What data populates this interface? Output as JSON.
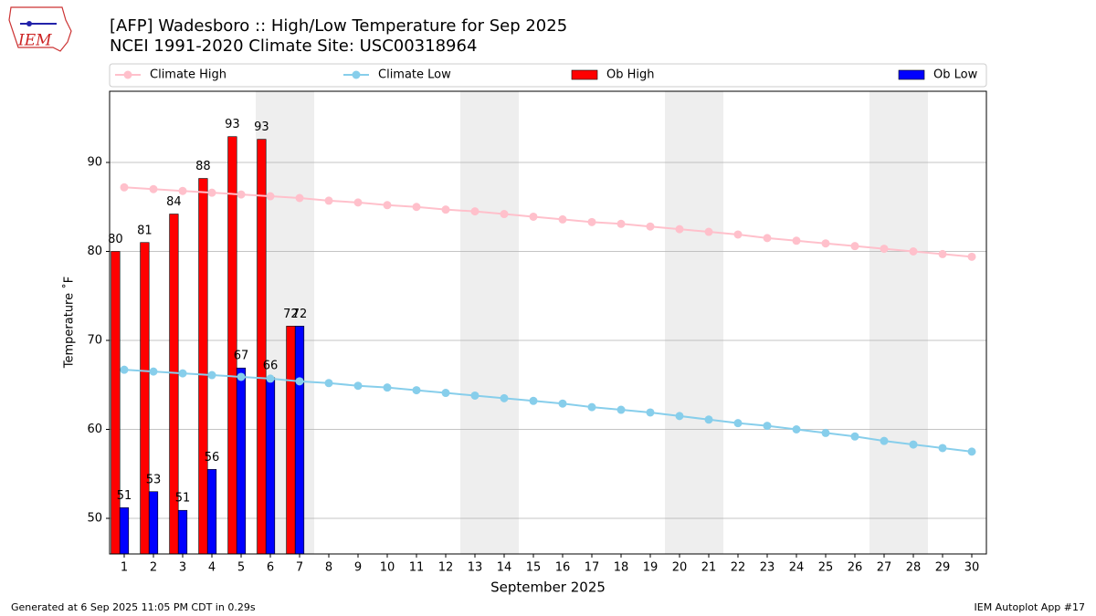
{
  "logo": "IEM",
  "footer": {
    "left": "Generated at 6 Sep 2025 11:05 PM CDT in 0.29s",
    "right": "IEM Autoplot App #17"
  },
  "chart_data": {
    "type": "bar",
    "title": "[AFP] Wadesboro :: High/Low Temperature for Sep 2025",
    "subtitle": "NCEI 1991-2020 Climate Site: USC00318964",
    "x_label": "September 2025",
    "y_label": "Temperature ˚F",
    "x": [
      1,
      2,
      3,
      4,
      5,
      6,
      7,
      8,
      9,
      10,
      11,
      12,
      13,
      14,
      15,
      16,
      17,
      18,
      19,
      20,
      21,
      22,
      23,
      24,
      25,
      26,
      27,
      28,
      29,
      30
    ],
    "xlim": [
      0.5,
      30.5
    ],
    "xticks": [
      1,
      2,
      3,
      4,
      5,
      6,
      7,
      8,
      9,
      10,
      11,
      12,
      13,
      14,
      15,
      16,
      17,
      18,
      19,
      20,
      21,
      22,
      23,
      24,
      25,
      26,
      27,
      28,
      29,
      30
    ],
    "ylim": [
      46,
      98
    ],
    "yticks": [
      50,
      60,
      70,
      80,
      90
    ],
    "grid": "y",
    "shaded_spans": [
      [
        5.5,
        7.5
      ],
      [
        12.5,
        14.5
      ],
      [
        19.5,
        21.5
      ],
      [
        26.5,
        28.5
      ]
    ],
    "shade_color": "#eeeeee",
    "series": [
      {
        "name": "Climate High",
        "type": "line",
        "color": "#ffc0cb",
        "values": [
          87.2,
          87.0,
          86.8,
          86.6,
          86.4,
          86.2,
          86.0,
          85.7,
          85.5,
          85.2,
          85.0,
          84.7,
          84.5,
          84.2,
          83.9,
          83.6,
          83.3,
          83.1,
          82.8,
          82.5,
          82.2,
          81.9,
          81.5,
          81.2,
          80.9,
          80.6,
          80.3,
          80.0,
          79.7,
          79.4
        ]
      },
      {
        "name": "Climate Low",
        "type": "line",
        "color": "#87ceeb",
        "values": [
          66.7,
          66.5,
          66.3,
          66.1,
          65.9,
          65.7,
          65.4,
          65.2,
          64.9,
          64.7,
          64.4,
          64.1,
          63.8,
          63.5,
          63.2,
          62.9,
          62.5,
          62.2,
          61.9,
          61.5,
          61.1,
          60.7,
          60.4,
          60.0,
          59.6,
          59.2,
          58.7,
          58.3,
          57.9,
          57.5
        ]
      },
      {
        "name": "Ob High",
        "type": "bar",
        "color": "#ff0000",
        "offset": -0.3,
        "width": 0.3,
        "values": [
          80,
          81,
          84.2,
          88.2,
          92.9,
          92.6,
          71.6,
          null,
          null,
          null,
          null,
          null,
          null,
          null,
          null,
          null,
          null,
          null,
          null,
          null,
          null,
          null,
          null,
          null,
          null,
          null,
          null,
          null,
          null,
          null
        ],
        "value_labels": [
          "80",
          "81",
          "84",
          "88",
          "93",
          "93",
          "72",
          null,
          null,
          null,
          null,
          null,
          null,
          null,
          null,
          null,
          null,
          null,
          null,
          null,
          null,
          null,
          null,
          null,
          null,
          null,
          null,
          null,
          null,
          null
        ]
      },
      {
        "name": "Ob Low",
        "type": "bar",
        "color": "#0000ff",
        "offset": 0,
        "width": 0.3,
        "values": [
          51.2,
          53,
          50.9,
          55.5,
          66.9,
          65.8,
          71.6,
          null,
          null,
          null,
          null,
          null,
          null,
          null,
          null,
          null,
          null,
          null,
          null,
          null,
          null,
          null,
          null,
          null,
          null,
          null,
          null,
          null,
          null,
          null
        ],
        "value_labels": [
          "51",
          "53",
          "51",
          "56",
          "67",
          "66",
          "72",
          null,
          null,
          null,
          null,
          null,
          null,
          null,
          null,
          null,
          null,
          null,
          null,
          null,
          null,
          null,
          null,
          null,
          null,
          null,
          null,
          null,
          null,
          null
        ]
      }
    ]
  }
}
